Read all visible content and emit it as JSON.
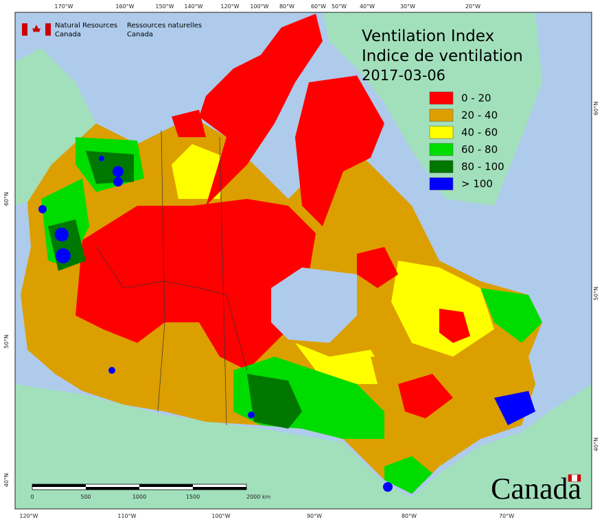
{
  "header": {
    "agency_en": [
      "Natural Resources",
      "Canada"
    ],
    "agency_fr": [
      "Ressources naturelles",
      "Canada"
    ]
  },
  "title": [
    "Ventilation Index",
    "Indice de ventilation",
    "2017-03-06"
  ],
  "legend": [
    {
      "label": "0 - 20",
      "color": "#ff0000"
    },
    {
      "label": "20 - 40",
      "color": "#dc9f00"
    },
    {
      "label": "40 - 60",
      "color": "#ffff00"
    },
    {
      "label": "60 - 80",
      "color": "#00dc00"
    },
    {
      "label": "80 - 100",
      "color": "#007800"
    },
    {
      "label": "> 100",
      "color": "#0000ff"
    }
  ],
  "top_labels": [
    "170°W",
    "160°W",
    "150°W",
    "140°W",
    "120°W",
    "100°W",
    "80°W",
    "60°W",
    "50°W",
    "40°W",
    "30°W",
    "20°W"
  ],
  "bottom_labels": [
    "120°W",
    "110°W",
    "100°W",
    "90°W",
    "80°W",
    "70°W"
  ],
  "left_labels": [
    "60°N",
    "50°N",
    "40°N"
  ],
  "right_labels": [
    "60°N",
    "50°N",
    "40°N"
  ],
  "scale_labels": [
    "0",
    "500",
    "1000",
    "1500",
    "2000  km"
  ],
  "wordmark": "Canada"
}
